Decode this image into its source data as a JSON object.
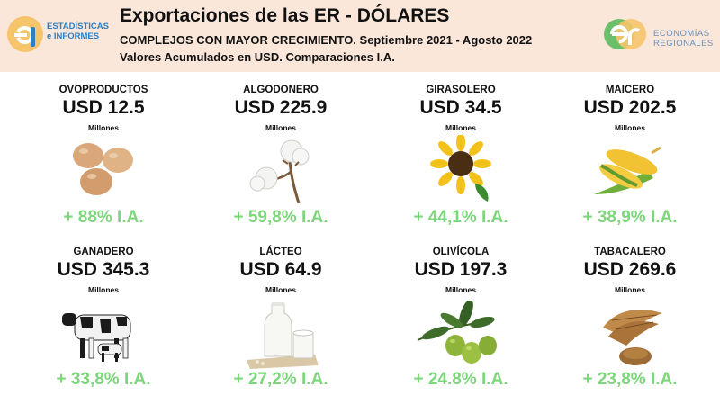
{
  "header": {
    "title": "Exportaciones de las ER - DÓLARES",
    "subtitle": "COMPLEJOS CON MAYOR CRECIMIENTO. Septiembre 2021 - Agosto 2022",
    "subtitle2": "Valores Acumulados en USD. Comparaciones I.A.",
    "logo_left_line1": "ESTADÍSTICAS",
    "logo_left_line2": "e INFORMES",
    "logo_right_line1": "ECONOMÍAS",
    "logo_right_line2": "REGIONALES"
  },
  "cards": [
    {
      "name": "OVOPRODUCTOS",
      "value": "USD 12.5",
      "unit": "Millones",
      "growth": "+ 88% I.A.",
      "icon": "eggs-icon"
    },
    {
      "name": "ALGODONERO",
      "value": "USD 225.9",
      "unit": "Millones",
      "growth": "+ 59,8% I.A.",
      "icon": "cotton-icon"
    },
    {
      "name": "GIRASOLERO",
      "value": "USD 34.5",
      "unit": "Millones",
      "growth": "+ 44,1% I.A.",
      "icon": "sunflower-icon"
    },
    {
      "name": "MAICERO",
      "value": "USD 202.5",
      "unit": "Millones",
      "growth": "+ 38,9% I.A.",
      "icon": "corn-icon"
    },
    {
      "name": "GANADERO",
      "value": "USD 345.3",
      "unit": "Millones",
      "growth": "+ 33,8% I.A.",
      "icon": "cattle-icon"
    },
    {
      "name": "LÁCTEO",
      "value": "USD 64.9",
      "unit": "Millones",
      "growth": "+ 27,2% I.A.",
      "icon": "milk-icon"
    },
    {
      "name": "OLIVÍCOLA",
      "value": "USD 197.3",
      "unit": "Millones",
      "growth": "+ 24.8% I.A.",
      "icon": "olives-icon"
    },
    {
      "name": "TABACALERO",
      "value": "USD 269.6",
      "unit": "Millones",
      "growth": "+ 23,8% I.A.",
      "icon": "tobacco-icon"
    }
  ],
  "colors": {
    "header_bg": "#fbe6da",
    "growth": "#7cd67a"
  }
}
